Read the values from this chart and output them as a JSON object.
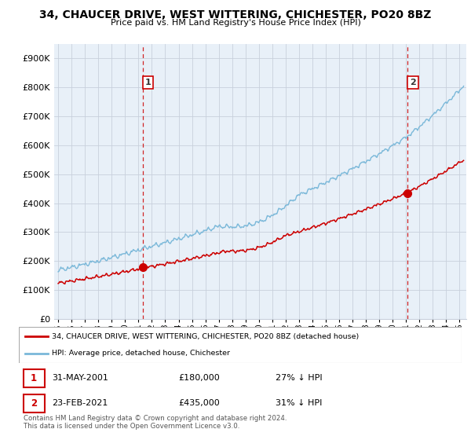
{
  "title": "34, CHAUCER DRIVE, WEST WITTERING, CHICHESTER, PO20 8BZ",
  "subtitle": "Price paid vs. HM Land Registry's House Price Index (HPI)",
  "sale1_date": "31-MAY-2001",
  "sale1_price": 180000,
  "sale1_label": "27% ↓ HPI",
  "sale2_date": "23-FEB-2021",
  "sale2_price": 435000,
  "sale2_label": "31% ↓ HPI",
  "legend_line1": "34, CHAUCER DRIVE, WEST WITTERING, CHICHESTER, PO20 8BZ (detached house)",
  "legend_line2": "HPI: Average price, detached house, Chichester",
  "footnote1": "Contains HM Land Registry data © Crown copyright and database right 2024.",
  "footnote2": "This data is licensed under the Open Government Licence v3.0.",
  "ylim": [
    0,
    950000
  ],
  "yticks": [
    0,
    100000,
    200000,
    300000,
    400000,
    500000,
    600000,
    700000,
    800000,
    900000
  ],
  "hpi_color": "#7ab8d9",
  "price_color": "#cc0000",
  "vline_color": "#cc0000",
  "chart_bg": "#e8f0f8",
  "background_color": "#ffffff",
  "grid_color": "#c8d0dc"
}
